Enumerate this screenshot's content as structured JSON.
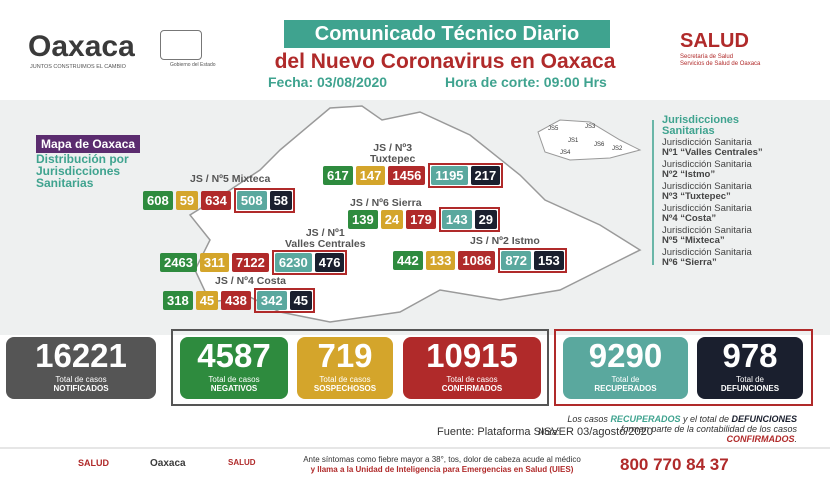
{
  "header": {
    "logo": "Oaxaca",
    "tagline": "JUNTOS CONSTRUIMOS EL CAMBIO",
    "government": "Gobierno del Estado",
    "title_line1": "Comunicado Técnico Diario",
    "title_line2": "del Nuevo Coronavirus en Oaxaca",
    "date": "Fecha: 03/08/2020",
    "cutoff": "Hora de corte: 09:00 Hrs",
    "health_logo": "SALUD",
    "health_line1": "Secretaría de Salud",
    "health_line2": "Servicios de Salud de Oaxaca"
  },
  "map": {
    "title": "Mapa de Oaxaca",
    "subtitle": "Distribución por Jurisdicciones Sanitarias",
    "jurisdictions": [
      {
        "label": [
          "JS / Nº3",
          "Tuxtepec"
        ],
        "values": [
          617,
          147,
          1456,
          1195,
          217
        ]
      },
      {
        "label": [
          "JS / Nº5 Mixteca"
        ],
        "values": [
          608,
          59,
          634,
          508,
          58
        ]
      },
      {
        "label": [
          "JS / Nº6 Sierra"
        ],
        "values": [
          139,
          24,
          179,
          143,
          29
        ]
      },
      {
        "label": [
          "JS / Nº1",
          "Valles Centrales"
        ],
        "values": [
          2463,
          311,
          7122,
          6230,
          476
        ]
      },
      {
        "label": [
          "JS / Nº2 Istmo"
        ],
        "values": [
          442,
          133,
          1086,
          872,
          153
        ]
      },
      {
        "label": [
          "JS / Nº4 Costa"
        ],
        "values": [
          318,
          45,
          438,
          342,
          45
        ]
      }
    ],
    "inset_labels": [
      "JS5",
      "JS3",
      "JS1",
      "JS6",
      "JS2",
      "JS4"
    ]
  },
  "legend": {
    "title": "Jurisdicciones Sanitarias",
    "entries": [
      [
        "Jurisdicción Sanitaria",
        "Nº1 “Valles Centrales”"
      ],
      [
        "Jurisdicción Sanitaria",
        "Nº2 “Istmo”"
      ],
      [
        "Jurisdicción Sanitaria",
        "Nº3 “Tuxtepec”"
      ],
      [
        "Jurisdicción Sanitaria",
        "Nº4 “Costa”"
      ],
      [
        "Jurisdicción Sanitaria",
        "Nº5 “Mixteca”"
      ],
      [
        "Jurisdicción Sanitaria",
        "Nº6 “Sierra”"
      ]
    ]
  },
  "totals": [
    {
      "value": 16221,
      "line1": "Total de casos",
      "line2": "NOTIFICADOS"
    },
    {
      "value": 4587,
      "line1": "Total de casos",
      "line2": "NEGATIVOS"
    },
    {
      "value": 719,
      "line1": "Total de casos",
      "line2": "SOSPECHOSOS"
    },
    {
      "value": 10915,
      "line1": "Total de casos",
      "line2": "CONFIRMADOS"
    },
    {
      "value": 9290,
      "line1": "Total de",
      "line2": "RECUPERADOS"
    },
    {
      "value": 978,
      "line1": "Total de",
      "line2": "DEFUNCIONES"
    }
  ],
  "source": "Fuente: Plataforma SISVER 03/agosto/2020",
  "note": {
    "label": "Nota:",
    "parts": [
      "Los casos ",
      "RECUPERADOS",
      " y el total de ",
      "DEFUNCIONES",
      " forman parte de la contabilidad de los casos ",
      "CONFIRMADOS",
      "."
    ]
  },
  "footer": {
    "logo1": "SALUD",
    "logo2": "Oaxaca",
    "logo3": "SALUD",
    "line1": "Ante síntomas como fiebre mayor a 38°, tos, dolor de cabeza acude al médico",
    "line2": "y llama a la Unidad de Inteligencia para Emergencias en Salud (UIES)",
    "phone": "800 770 84 37"
  }
}
